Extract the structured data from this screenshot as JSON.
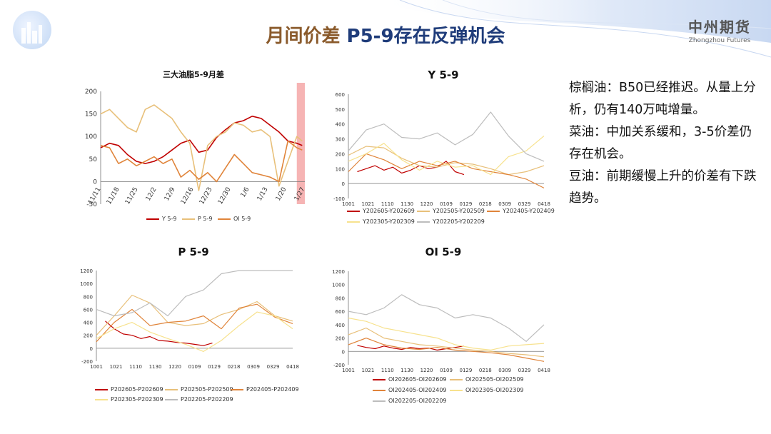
{
  "header": {
    "title_cn": "月间价差",
    "title_en": "P5-9存在反弹机会",
    "brand_cn": "中州期货",
    "brand_en": "Zhongzhou Futures"
  },
  "colors": {
    "red": "#c00000",
    "tan": "#e8c07a",
    "orange": "#e0843a",
    "yellow": "#f7e28e",
    "gray": "#bdbdbd",
    "highlight": "#f4a7a7"
  },
  "charts": {
    "c1": {
      "title": "三大油脂5-9月差",
      "type": "line",
      "x_ticks": [
        "11/11",
        "11/18",
        "11/25",
        "12/2",
        "12/9",
        "12/16",
        "12/23",
        "12/30",
        "1/6",
        "1/13",
        "1/20",
        "1/27"
      ],
      "y_ticks": [
        "200",
        "150",
        "100",
        "50",
        "0",
        "-50"
      ],
      "ylim": [
        -50,
        200
      ],
      "highlight_range": [
        11.0,
        11.45
      ],
      "series": [
        {
          "name": "Y 5-9",
          "color": "#c00000",
          "x": [
            0,
            0.5,
            1,
            1.5,
            2,
            2.5,
            3,
            3.5,
            4,
            4.5,
            5,
            5.5,
            6,
            6.5,
            7,
            7.5,
            8,
            8.5,
            9,
            9.5,
            10,
            10.5,
            11,
            11.3
          ],
          "y": [
            75,
            85,
            80,
            60,
            45,
            40,
            45,
            55,
            70,
            85,
            92,
            65,
            70,
            98,
            115,
            130,
            135,
            145,
            140,
            125,
            110,
            90,
            85,
            80
          ]
        },
        {
          "name": "P 5-9",
          "color": "#e8c07a",
          "x": [
            0,
            0.5,
            1,
            1.5,
            2,
            2.5,
            3,
            3.5,
            4,
            4.5,
            5,
            5.5,
            6,
            6.5,
            7,
            7.5,
            8,
            8.5,
            9,
            9.5,
            10,
            10.5,
            11,
            11.3
          ],
          "y": [
            150,
            160,
            140,
            120,
            110,
            160,
            170,
            155,
            140,
            110,
            85,
            -20,
            80,
            100,
            110,
            130,
            125,
            110,
            115,
            100,
            -10,
            45,
            100,
            90
          ]
        },
        {
          "name": "OI 5-9",
          "color": "#e0843a",
          "x": [
            0,
            0.5,
            1,
            1.5,
            2,
            2.5,
            3,
            3.5,
            4,
            4.5,
            5,
            5.5,
            6,
            6.5,
            7,
            7.5,
            8,
            8.5,
            9,
            9.5,
            10,
            10.5,
            11,
            11.3
          ],
          "y": [
            80,
            75,
            40,
            50,
            35,
            45,
            55,
            40,
            50,
            10,
            25,
            5,
            20,
            0,
            30,
            60,
            40,
            20,
            15,
            10,
            0,
            90,
            75,
            70
          ]
        }
      ]
    },
    "c2": {
      "title": "Y 5-9",
      "type": "line",
      "x_ticks": [
        "1001",
        "1021",
        "1110",
        "1130",
        "1220",
        "0109",
        "0129",
        "0218",
        "0309",
        "0329",
        "0418"
      ],
      "y_ticks": [
        "600",
        "500",
        "400",
        "300",
        "200",
        "100",
        "0",
        "-100"
      ],
      "ylim": [
        -100,
        600
      ],
      "series": [
        {
          "name": "Y202605-Y202609",
          "color": "#c00000",
          "x": [
            0.5,
            1,
            1.5,
            2,
            2.5,
            3,
            3.5,
            4,
            4.5,
            5,
            5.5,
            6,
            6.5
          ],
          "y": [
            80,
            100,
            120,
            90,
            110,
            70,
            90,
            120,
            100,
            110,
            150,
            80,
            60
          ]
        },
        {
          "name": "Y202505-Y202509",
          "color": "#e8c07a",
          "x": [
            0,
            1,
            2,
            3,
            4,
            5,
            6,
            7,
            8,
            9,
            10,
            11
          ],
          "y": [
            190,
            250,
            240,
            170,
            120,
            110,
            140,
            130,
            100,
            60,
            80,
            120
          ]
        },
        {
          "name": "Y202405-Y202409",
          "color": "#e0843a",
          "x": [
            0,
            1,
            2,
            3,
            4,
            5,
            6,
            7,
            8,
            9,
            10,
            11
          ],
          "y": [
            80,
            200,
            160,
            100,
            150,
            120,
            150,
            100,
            80,
            60,
            30,
            -30
          ]
        },
        {
          "name": "Y202305-Y202309",
          "color": "#f7e28e",
          "x": [
            0,
            1,
            2,
            3,
            4,
            5,
            6,
            7,
            8,
            9,
            10,
            11
          ],
          "y": [
            150,
            200,
            270,
            160,
            90,
            150,
            110,
            120,
            60,
            180,
            220,
            320
          ]
        },
        {
          "name": "Y202205-Y202209",
          "color": "#bdbdbd",
          "x": [
            0,
            1,
            2,
            3,
            4,
            5,
            6,
            7,
            8,
            9,
            10,
            11
          ],
          "y": [
            220,
            360,
            400,
            310,
            300,
            340,
            260,
            330,
            480,
            320,
            200,
            150
          ]
        }
      ]
    },
    "c3": {
      "title": "P 5-9",
      "type": "line",
      "x_ticks": [
        "1001",
        "1021",
        "1110",
        "1130",
        "1220",
        "0109",
        "0129",
        "0218",
        "0309",
        "0329",
        "0418"
      ],
      "y_ticks": [
        "1200",
        "1000",
        "800",
        "600",
        "400",
        "200",
        "0",
        "-200"
      ],
      "ylim": [
        -200,
        1200
      ],
      "series": [
        {
          "name": "P202605-P202609",
          "color": "#c00000",
          "x": [
            0.5,
            1,
            1.5,
            2,
            2.5,
            3,
            3.5,
            4,
            4.5,
            5,
            5.5,
            6,
            6.5
          ],
          "y": [
            420,
            300,
            220,
            200,
            150,
            180,
            120,
            110,
            90,
            80,
            60,
            40,
            80
          ]
        },
        {
          "name": "P202505-P202509",
          "color": "#e8c07a",
          "x": [
            0,
            1,
            2,
            3,
            4,
            5,
            6,
            7,
            8,
            9,
            10,
            11
          ],
          "y": [
            200,
            500,
            820,
            700,
            400,
            350,
            380,
            520,
            600,
            720,
            500,
            420
          ]
        },
        {
          "name": "P202405-P202409",
          "color": "#e0843a",
          "x": [
            0,
            1,
            2,
            3,
            4,
            5,
            6,
            7,
            8,
            9,
            10,
            11
          ],
          "y": [
            100,
            400,
            600,
            350,
            400,
            420,
            500,
            300,
            620,
            680,
            480,
            380
          ]
        },
        {
          "name": "P202305-P202309",
          "color": "#f7e28e",
          "x": [
            0,
            1,
            2,
            3,
            4,
            5,
            6,
            7,
            8,
            9,
            10,
            11
          ],
          "y": [
            150,
            300,
            400,
            250,
            150,
            60,
            -50,
            120,
            350,
            560,
            500,
            300
          ]
        },
        {
          "name": "P202205-P202209",
          "color": "#bdbdbd",
          "x": [
            0,
            1,
            2,
            3,
            4,
            5,
            6,
            7,
            8,
            9,
            10,
            11
          ],
          "y": [
            600,
            500,
            550,
            700,
            500,
            800,
            900,
            1150,
            1200,
            1200,
            1200,
            1200
          ]
        }
      ]
    },
    "c4": {
      "title": "OI 5-9",
      "type": "line",
      "x_ticks": [
        "1001",
        "1021",
        "1110",
        "1130",
        "1220",
        "0109",
        "0129",
        "0218",
        "0309",
        "0329",
        "0418"
      ],
      "y_ticks": [
        "1200",
        "1000",
        "800",
        "600",
        "400",
        "200",
        "0",
        "-200"
      ],
      "ylim": [
        -200,
        1200
      ],
      "series": [
        {
          "name": "OI202605-OI202609",
          "color": "#c00000",
          "x": [
            0.5,
            1,
            1.5,
            2,
            2.5,
            3,
            3.5,
            4,
            4.5,
            5,
            5.5,
            6,
            6.5
          ],
          "y": [
            90,
            60,
            40,
            80,
            50,
            30,
            60,
            40,
            50,
            20,
            40,
            60,
            80
          ]
        },
        {
          "name": "OI202505-OI202509",
          "color": "#e8c07a",
          "x": [
            0,
            1,
            2,
            3,
            4,
            5,
            6,
            7,
            8,
            9,
            10,
            11
          ],
          "y": [
            250,
            350,
            200,
            150,
            100,
            80,
            50,
            20,
            0,
            -30,
            -50,
            -80
          ]
        },
        {
          "name": "OI202405-OI202409",
          "color": "#e0843a",
          "x": [
            0,
            1,
            2,
            3,
            4,
            5,
            6,
            7,
            8,
            9,
            10,
            11
          ],
          "y": [
            100,
            200,
            100,
            50,
            30,
            60,
            20,
            0,
            -20,
            -50,
            -100,
            -150
          ]
        },
        {
          "name": "OI202305-OI202309",
          "color": "#f7e28e",
          "x": [
            0,
            1,
            2,
            3,
            4,
            5,
            6,
            7,
            8,
            9,
            10,
            11
          ],
          "y": [
            500,
            450,
            350,
            300,
            250,
            200,
            100,
            50,
            20,
            80,
            100,
            120
          ]
        },
        {
          "name": "OI202205-OI202209",
          "color": "#bdbdbd",
          "x": [
            0,
            1,
            2,
            3,
            4,
            5,
            6,
            7,
            8,
            9,
            10,
            11
          ],
          "y": [
            600,
            550,
            650,
            850,
            700,
            650,
            500,
            550,
            500,
            350,
            150,
            400
          ]
        }
      ]
    }
  },
  "commentary": [
    "棕榈油：B50已经推迟。从量上分析，仍有140万吨增量。",
    "菜油：中加关系缓和，3-5价差仍存在机会。",
    "豆油：前期缓慢上升的价差有下跌趋势。"
  ]
}
